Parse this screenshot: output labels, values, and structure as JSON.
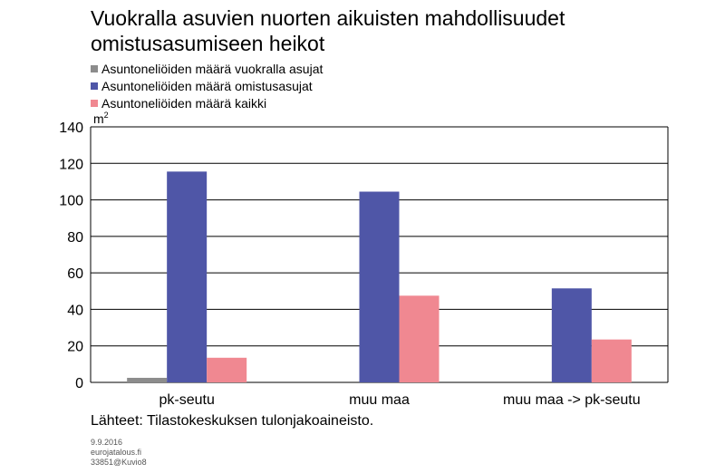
{
  "chart_data": {
    "type": "bar",
    "title": "Vuokralla asuvien nuorten aikuisten mahdollisuudet omistusasumiseen heikot",
    "unit": "m",
    "unit_sup": "2",
    "categories": [
      "pk-seutu",
      "muu maa",
      "muu maa -> pk-seutu"
    ],
    "series": [
      {
        "name": "Asuntoneliöiden määrä vuokralla asujat",
        "color": "#8c8c8c",
        "values": [
          2.5,
          null,
          null
        ]
      },
      {
        "name": "Asuntoneliöiden määrä omistusasujat",
        "color": "#4f56a7",
        "values": [
          115.5,
          104.5,
          51.5
        ]
      },
      {
        "name": "Asuntoneliöiden määrä kaikki",
        "color": "#f08891",
        "values": [
          13.5,
          47.5,
          23.5
        ]
      }
    ],
    "ylim": [
      0,
      140
    ],
    "yticks": [
      0,
      20,
      40,
      60,
      80,
      100,
      120,
      140
    ],
    "grid": true,
    "legend_position": "top-left"
  },
  "source": "Lähteet: Tilastokeskuksen tulonjakoaineisto.",
  "footer": {
    "date": "9.9.2016",
    "site": "eurojatalous.fi",
    "id": "33851@Kuvio8"
  }
}
